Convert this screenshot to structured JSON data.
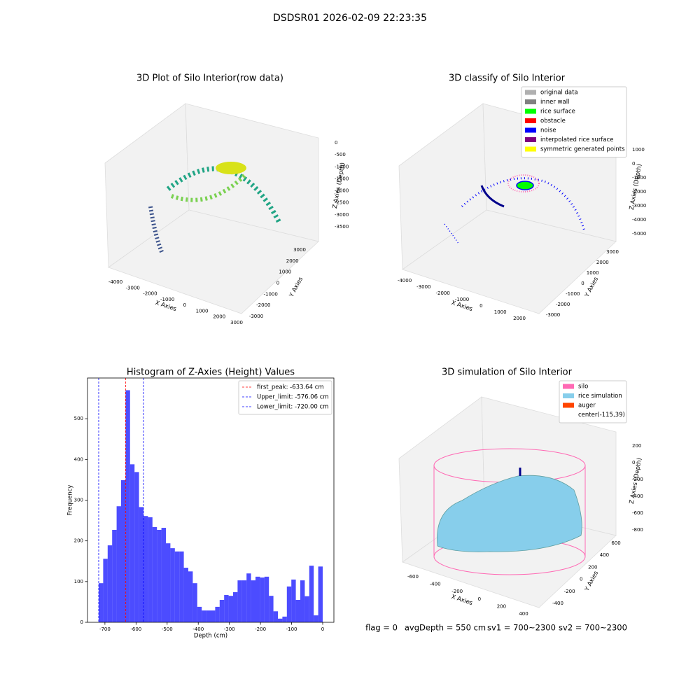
{
  "title": "DSDSR01 2026-02-09 22:23:35",
  "chart_data": [
    {
      "type": "scatter3d",
      "title": "3D Plot of Silo Interior(row data)",
      "xlabel": "X Axies",
      "ylabel": "Y Axies",
      "zlabel": "Z Axies (Depth)",
      "xticks": [
        -4000,
        -3000,
        -2000,
        -1000,
        0,
        1000,
        2000,
        3000
      ],
      "yticks": [
        -3000,
        -2000,
        -1000,
        0,
        1000,
        2000,
        3000
      ],
      "zticks": [
        0,
        -500,
        -1000,
        -1500,
        -2000,
        -2500,
        -3000,
        -3500
      ]
    },
    {
      "type": "scatter3d",
      "title": "3D classify of Silo Interior",
      "xlabel": "X Axies",
      "ylabel": "Y Axies",
      "zlabel": "Z Axies (Depth)",
      "xticks": [
        -4000,
        -3000,
        -2000,
        -1000,
        0,
        1000,
        2000
      ],
      "yticks": [
        -3000,
        -2000,
        -1000,
        0,
        1000,
        2000,
        3000
      ],
      "zticks": [
        1000,
        0,
        -1000,
        -2000,
        -3000,
        -4000,
        -5000
      ],
      "legend": "upper right",
      "series": [
        {
          "name": "original data",
          "color": "#b0b0b0"
        },
        {
          "name": "inner wall",
          "color": "#808080"
        },
        {
          "name": "rice surface",
          "color": "#00ff00"
        },
        {
          "name": "obstacle",
          "color": "#ff0000"
        },
        {
          "name": "noise",
          "color": "#0000ff"
        },
        {
          "name": "interpolated rice surface",
          "color": "#800080"
        },
        {
          "name": "symmetric generated points",
          "color": "#ffff00"
        }
      ]
    },
    {
      "type": "histogram",
      "title": "Histogram of Z-Axies (Height) Values",
      "xlabel": "Depth (cm)",
      "ylabel": "Frequency",
      "color": "#0000ff",
      "bins": [
        -720,
        -705.6,
        -691.2,
        -676.8,
        -662.4,
        -648,
        -633.6,
        -619.2,
        -604.8,
        -590.4,
        -576,
        -561.6,
        -547.2,
        -532.8,
        -518.4,
        -504,
        -489.6,
        -475.2,
        -460.8,
        -446.4,
        -432,
        -417.6,
        -403.2,
        -388.8,
        -374.4,
        -360,
        -345.6,
        -331.2,
        -316.8,
        -302.4,
        -288,
        -273.6,
        -259.2,
        -244.8,
        -230.4,
        -216,
        -201.6,
        -187.2,
        -172.8,
        -158.4,
        -144,
        -129.6,
        -115.2,
        -100.8,
        -86.4,
        -72,
        -57.6,
        -43.2,
        -28.8,
        -14.4,
        0
      ],
      "counts": [
        96,
        156,
        189,
        227,
        285,
        349,
        570,
        388,
        369,
        283,
        261,
        258,
        234,
        227,
        232,
        194,
        182,
        174,
        174,
        134,
        125,
        96,
        38,
        29,
        29,
        29,
        38,
        55,
        67,
        65,
        74,
        103,
        103,
        120,
        103,
        112,
        110,
        112,
        65,
        27,
        9,
        14,
        88,
        105,
        55,
        103,
        64,
        139,
        17,
        137
      ],
      "xlim": [
        -756,
        36
      ],
      "ylim": [
        0,
        600
      ],
      "xticks": [
        -700,
        -600,
        -500,
        -400,
        -300,
        -200,
        -100,
        0
      ],
      "yticks": [
        0,
        100,
        200,
        300,
        400,
        500
      ],
      "legend": "upper right",
      "lines": [
        {
          "name": "first_peak: -633.64 cm",
          "value": -633.64,
          "color": "#ff0000"
        },
        {
          "name": "Upper_limit: -576.06 cm",
          "value": -576.06,
          "color": "#0000ff"
        },
        {
          "name": "Lower_limit: -720.00 cm",
          "value": -720.0,
          "color": "#0000ff"
        }
      ]
    },
    {
      "type": "surface3d",
      "title": "3D simulation of Silo Interior",
      "xlabel": "X Axies",
      "ylabel": "Y Axies",
      "zlabel": "Z Axies (Depth)",
      "xticks": [
        -600,
        -400,
        -200,
        0,
        200,
        400
      ],
      "yticks": [
        -400,
        -200,
        0,
        200,
        400,
        600
      ],
      "zticks": [
        200,
        0,
        -200,
        -400,
        -600,
        -800
      ],
      "legend": "upper right",
      "series": [
        {
          "name": "silo",
          "color": "#ff69b4"
        },
        {
          "name": "rice simulation",
          "color": "#87ceeb"
        },
        {
          "name": "auger",
          "color": "#ff4500"
        },
        {
          "name": "center(-115,39)"
        }
      ],
      "footer": [
        "flag = 0",
        "avgDepth = 550 cm",
        "sv1 = 700~2300",
        "sv2 = 700~2300"
      ]
    }
  ]
}
